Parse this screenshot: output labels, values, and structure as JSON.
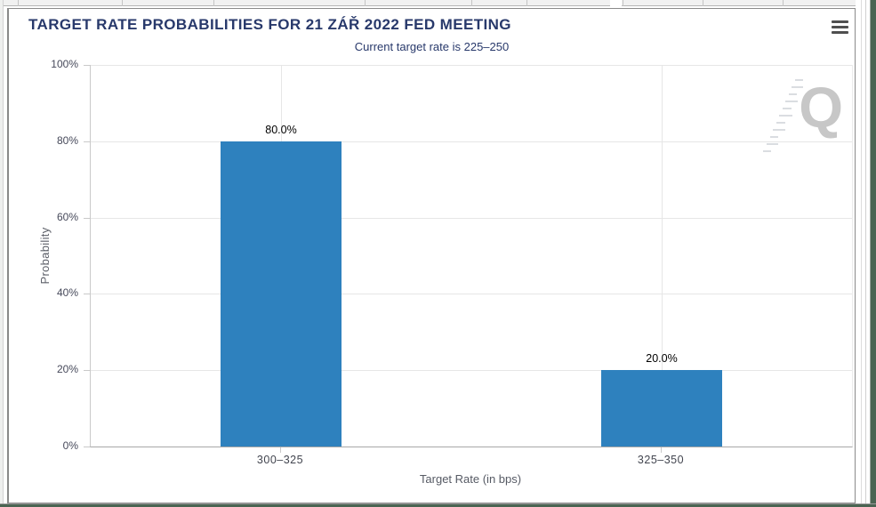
{
  "header": {
    "title": "TARGET RATE PROBABILITIES FOR 21 ZÁŘ 2022 FED MEETING"
  },
  "chart_data": {
    "type": "bar",
    "title": "TARGET RATE PROBABILITIES FOR 21 ZÁŘ 2022 FED MEETING",
    "subtitle": "Current target rate is 225–250",
    "categories": [
      "300–325",
      "325–350"
    ],
    "values": [
      80.0,
      20.0
    ],
    "value_labels": [
      "80.0%",
      "20.0%"
    ],
    "xlabel": "Target Rate (in bps)",
    "ylabel": "Probability",
    "ylim": [
      0,
      100
    ],
    "ytick_labels": [
      "0%",
      "20%",
      "40%",
      "60%",
      "80%",
      "100%"
    ],
    "grid": true,
    "legend": "none",
    "bar_color": "#2e81be",
    "watermark_letter": "Q"
  },
  "colors": {
    "title_navy": "#28396b",
    "bar_blue": "#2e81be",
    "gridline": "#e6e6e6",
    "edge_green": "#4a6452",
    "watermark_gray": "#c7c7c7"
  }
}
